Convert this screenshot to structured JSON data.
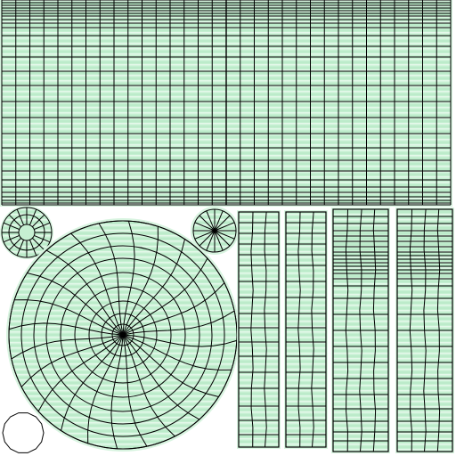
{
  "colors": {
    "background": "#ffffff",
    "fill": "#c6f0d2",
    "fill_light": "#e4f8ea",
    "fill_stripe": "#b2e6c2",
    "line": "#000000",
    "halo": "#d8f4e0"
  },
  "uv_layout": {
    "top_panel": {
      "cols_left": 16,
      "cols_right": 16,
      "rows": 24
    },
    "large_disc": {
      "rings": 8,
      "spokes": 24
    },
    "small_disc_left": {
      "rings": 2,
      "spokes": 16
    },
    "small_disc_right": {
      "rings": 1,
      "spokes": 16
    },
    "strips": [
      {
        "cols": 3,
        "rows": 14
      },
      {
        "cols": 3,
        "rows": 14
      },
      {
        "cols": 4,
        "rows": 24
      },
      {
        "cols": 4,
        "rows": 24
      }
    ]
  }
}
